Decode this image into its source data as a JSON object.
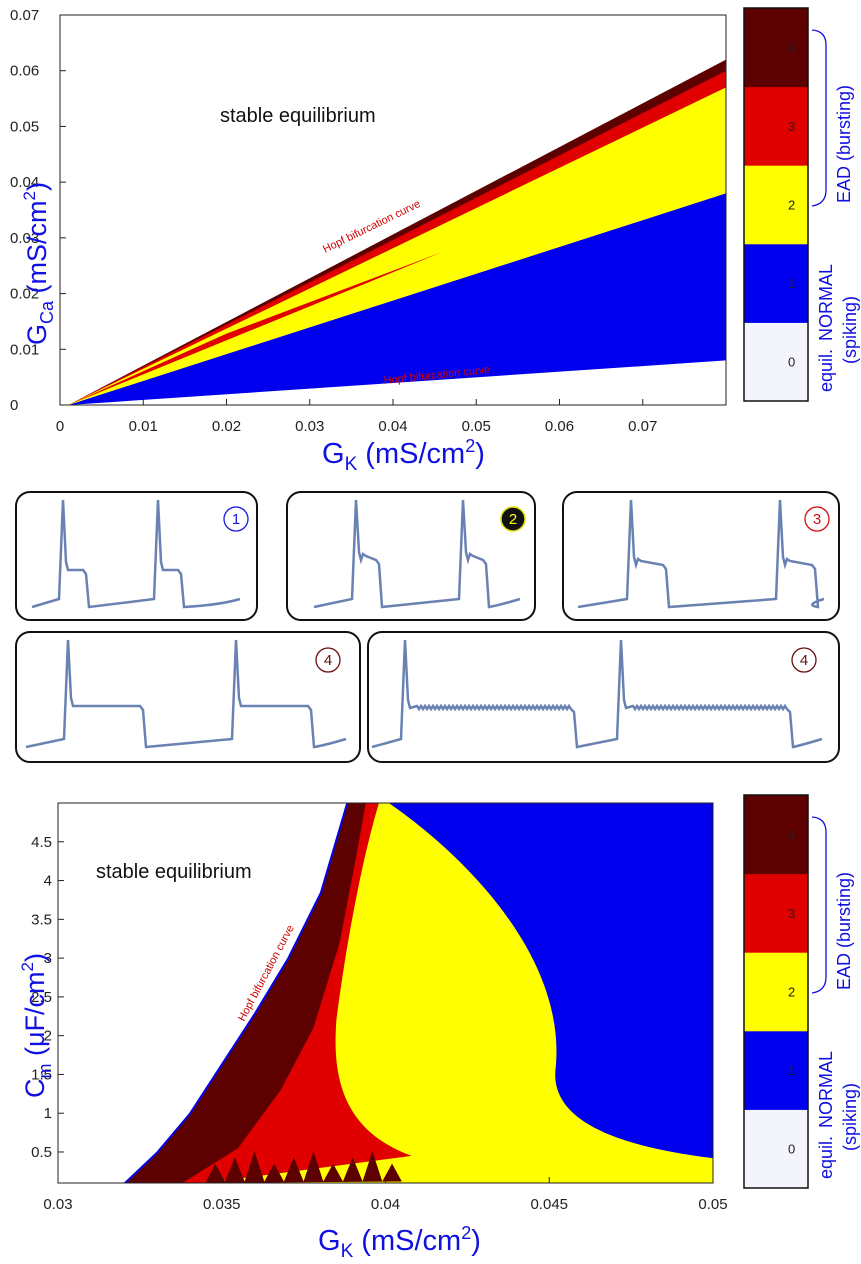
{
  "chart_data": [
    {
      "type": "heatmap",
      "xlabel": "G_K (mS/cm^2)",
      "ylabel": "G_Ca (mS/cm^2)",
      "xlim": [
        0,
        0.08
      ],
      "ylim": [
        0,
        0.07
      ],
      "x_ticks": [
        "0",
        "0.01",
        "0.02",
        "0.03",
        "0.04",
        "0.05",
        "0.06",
        "0.07"
      ],
      "y_ticks": [
        "0",
        "0.01",
        "0.02",
        "0.03",
        "0.04",
        "0.05",
        "0.06",
        "0.07"
      ],
      "annotations": [
        "stable equilibrium",
        "Hopf bifurcation curve",
        "Hopf bifurcation curve"
      ],
      "regions": [
        {
          "class": "1",
          "color": "#0000ee",
          "boundary": [
            [
              0.001,
              0
            ],
            [
              0.08,
              0.038
            ],
            [
              0.08,
              0.008
            ]
          ]
        },
        {
          "class": "2",
          "color": "#ffff00",
          "boundary": [
            [
              0.001,
              0
            ],
            [
              0.08,
              0.058
            ],
            [
              0.08,
              0.038
            ]
          ]
        },
        {
          "class": "3",
          "color": "#e00000",
          "boundary": [
            [
              0.001,
              0
            ],
            [
              0.08,
              0.061
            ],
            [
              0.08,
              0.057
            ]
          ]
        },
        {
          "class": "4",
          "color": "#5c0000",
          "boundary": [
            [
              0.001,
              0
            ],
            [
              0.08,
              0.062
            ],
            [
              0.08,
              0.06
            ]
          ]
        }
      ],
      "colorbar": {
        "ticks": [
          "0",
          "1",
          "2",
          "3",
          "4"
        ],
        "colors": [
          "#f4f4fc",
          "#0000ee",
          "#ffff00",
          "#e00000",
          "#5c0000"
        ],
        "labels": [
          "equil.",
          "NORMAL",
          "(spiking)",
          "EAD (bursting)"
        ]
      }
    },
    {
      "type": "heatmap",
      "xlabel": "G_K (mS/cm^2)",
      "ylabel": "C_m (μF/cm^2)",
      "xlim": [
        0.03,
        0.05
      ],
      "ylim": [
        0.1,
        5.0
      ],
      "x_ticks": [
        "0.03",
        "0.035",
        "0.04",
        "0.045",
        "0.05"
      ],
      "y_ticks": [
        "0.5",
        "1",
        "1.5",
        "2",
        "2.5",
        "3",
        "3.5",
        "4",
        "4.5"
      ],
      "annotations": [
        "stable equilibrium",
        "Hopf bifurcation curve"
      ],
      "hopf_curve": [
        [
          0.032,
          0.1
        ],
        [
          0.033,
          0.5
        ],
        [
          0.034,
          1.0
        ],
        [
          0.035,
          1.65
        ],
        [
          0.036,
          2.3
        ],
        [
          0.037,
          3.0
        ],
        [
          0.038,
          3.85
        ],
        [
          0.0388,
          5.0
        ]
      ],
      "regions": [
        {
          "class": "4",
          "color": "#5c0000"
        },
        {
          "class": "3",
          "color": "#e00000"
        },
        {
          "class": "2",
          "color": "#ffff00"
        },
        {
          "class": "1",
          "color": "#0000ee"
        }
      ],
      "colorbar": {
        "ticks": [
          "0",
          "1",
          "2",
          "3",
          "4"
        ],
        "colors": [
          "#f4f4fc",
          "#0000ee",
          "#ffff00",
          "#e00000",
          "#5c0000"
        ],
        "labels": [
          "equil.",
          "NORMAL",
          "(spiking)",
          "EAD (bursting)"
        ]
      }
    }
  ],
  "labels": {
    "top_title_region": "stable equilibrium",
    "hopf_upper": "Hopf bifurcation curve",
    "hopf_lower": "Hopf bifurcation curve",
    "bottom_title_region": "stable equilibrium",
    "hopf_bottom": "Hopf bifurcation curve",
    "cb_equil": "equil.",
    "cb_normal": "NORMAL",
    "cb_spiking": "(spiking)",
    "cb_ead": "EAD (bursting)",
    "top_x_main": "G",
    "top_x_sub": "K",
    "top_x_unit_a": " (mS/cm",
    "top_x_unit_sup": "2",
    "top_x_unit_b": ")",
    "top_y_main": "G",
    "top_y_sub": "Ca",
    "top_y_unit_a": " (mS/cm",
    "top_y_unit_sup": "2",
    "top_y_unit_b": ")",
    "bot_x_main": "G",
    "bot_x_sub": "K",
    "bot_x_unit_a": " (mS/cm",
    "bot_x_unit_sup": "2",
    "bot_x_unit_b": ")",
    "bot_y_main": "C",
    "bot_y_sub": "m",
    "bot_y_unit_a": " (μF/cm",
    "bot_y_unit_sup": "2",
    "bot_y_unit_b": ")"
  },
  "trace_badges": [
    "1",
    "2",
    "3",
    "4",
    "4"
  ],
  "colors": {
    "blue": "#0000ee",
    "yellow": "#ffff00",
    "red": "#e00000",
    "darkred": "#5c0000",
    "equil": "#f4f4fc",
    "trace": "#6a82b2",
    "axis_label": "#1010e0",
    "badge_blue": "#1a1adf",
    "badge_red": "#d01010",
    "badge_darkred": "#6a0f0f"
  }
}
